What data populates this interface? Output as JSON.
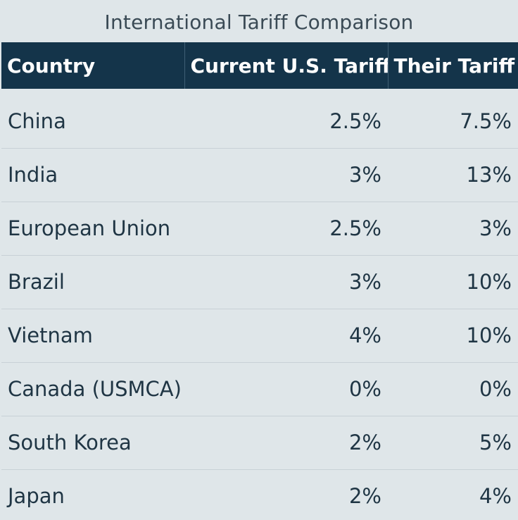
{
  "chart_data": {
    "type": "table",
    "title": "International Tariff Comparison",
    "columns": [
      "Country",
      "Current U.S. Tariff",
      "Their Tariff"
    ],
    "rows": [
      {
        "country": "China",
        "us_tariff": "2.5%",
        "their_tariff": "7.5%"
      },
      {
        "country": "India",
        "us_tariff": "3%",
        "their_tariff": "13%"
      },
      {
        "country": "European Union",
        "us_tariff": "2.5%",
        "their_tariff": "3%"
      },
      {
        "country": "Brazil",
        "us_tariff": "3%",
        "their_tariff": "10%"
      },
      {
        "country": "Vietnam",
        "us_tariff": "4%",
        "their_tariff": "10%"
      },
      {
        "country": "Canada (USMCA)",
        "us_tariff": "0%",
        "their_tariff": "0%"
      },
      {
        "country": "South Korea",
        "us_tariff": "2%",
        "their_tariff": "5%"
      },
      {
        "country": "Japan",
        "us_tariff": "2%",
        "their_tariff": "4%"
      }
    ]
  },
  "colors": {
    "header_bg": "#14344a",
    "page_bg": "#dfe6e9",
    "text": "#1f3544"
  }
}
